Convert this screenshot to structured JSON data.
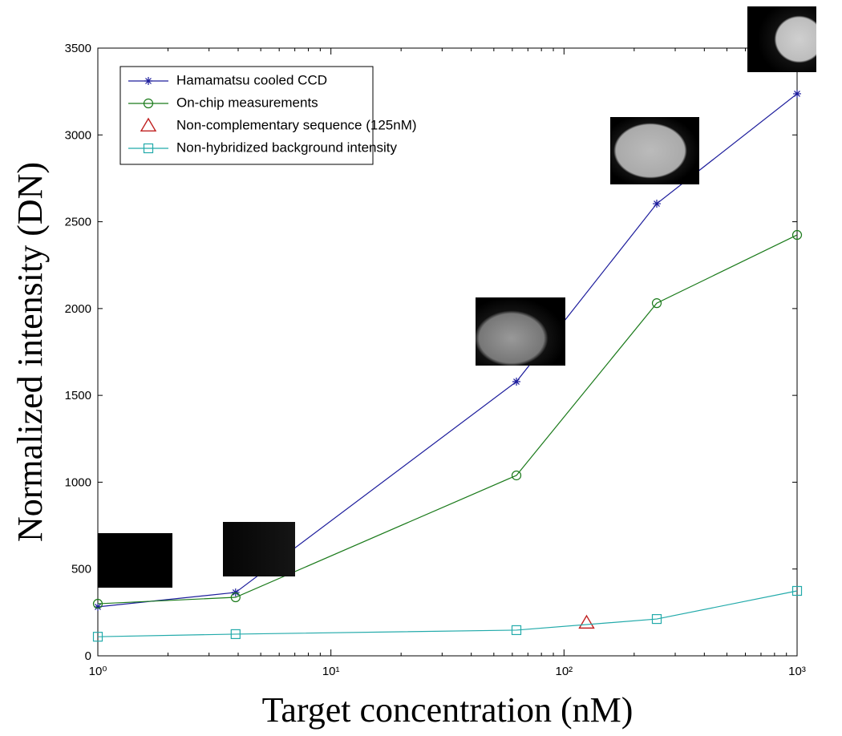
{
  "chart_data": {
    "type": "line",
    "xlabel": "Target concentration (nM)",
    "ylabel": "Normalized intensity (DN)",
    "xscale": "log",
    "xlim": [
      1,
      1000
    ],
    "ylim": [
      0,
      3500
    ],
    "xticks": [
      {
        "value": 1,
        "label": "10⁰"
      },
      {
        "value": 10,
        "label": "10¹"
      },
      {
        "value": 100,
        "label": "10²"
      },
      {
        "value": 1000,
        "label": "10³"
      }
    ],
    "yticks": [
      0,
      500,
      1000,
      1500,
      2000,
      2500,
      3000,
      3500
    ],
    "legend": "upper left",
    "series": [
      {
        "name": "Hamamatsu cooled CCD",
        "color": "#1c1c9c",
        "marker": "star",
        "x": [
          1,
          3.9,
          62.5,
          250,
          1000
        ],
        "values": [
          282,
          365,
          1579,
          2604,
          3237
        ]
      },
      {
        "name": "On-chip measurements",
        "color": "#1a7a1a",
        "marker": "circle",
        "x": [
          1,
          3.9,
          62.5,
          250,
          1000
        ],
        "values": [
          300,
          337,
          1039,
          2031,
          2424
        ]
      },
      {
        "name": "Non-complementary sequence (125nM)",
        "color": "#c02020",
        "marker": "triangle",
        "x": [
          125
        ],
        "values": [
          189
        ]
      },
      {
        "name": "Non-hybridized background intensity",
        "color": "#22aaaa",
        "marker": "square",
        "x": [
          1,
          3.9,
          62.5,
          250,
          1000
        ],
        "values": [
          110,
          125,
          148,
          212,
          374
        ]
      }
    ]
  }
}
